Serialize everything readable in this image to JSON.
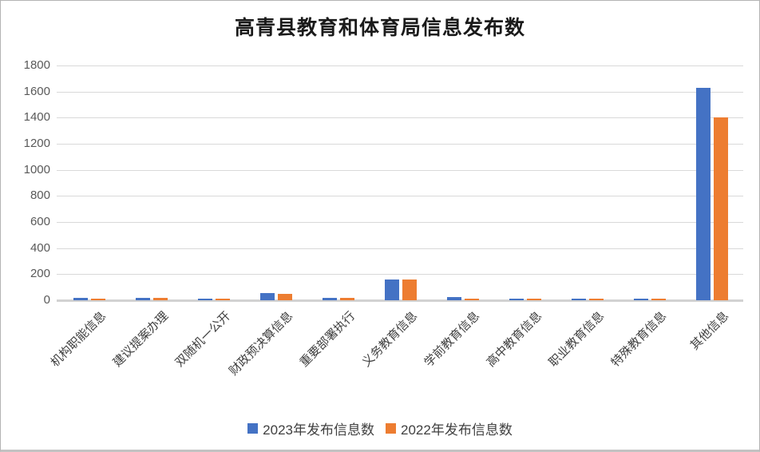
{
  "chart_data": {
    "type": "bar",
    "title": "高青县教育和体育局信息发布数",
    "categories": [
      "机构职能信息",
      "建议提案办理",
      "双随机一公开",
      "财政预决算信息",
      "重要部署执行",
      "义务教育信息",
      "学前教育信息",
      "高中教育信息",
      "职业教育信息",
      "特殊教育信息",
      "其他信息"
    ],
    "series": [
      {
        "name": "2023年发布信息数",
        "color": "#4472C4",
        "values": [
          20,
          20,
          12,
          55,
          20,
          160,
          22,
          14,
          14,
          12,
          1630
        ]
      },
      {
        "name": "2022年发布信息数",
        "color": "#ED7D31",
        "values": [
          10,
          18,
          10,
          52,
          18,
          160,
          10,
          12,
          12,
          10,
          1405
        ]
      }
    ],
    "xlabel": "",
    "ylabel": "",
    "ylim": [
      0,
      1800
    ],
    "yticks": [
      0,
      200,
      400,
      600,
      800,
      1000,
      1200,
      1400,
      1600,
      1800
    ],
    "grid": true,
    "legend_position": "bottom"
  },
  "colors": {
    "grid": "#d9d9d9",
    "axis_text": "#595959",
    "title_text": "#1a1a1a"
  }
}
